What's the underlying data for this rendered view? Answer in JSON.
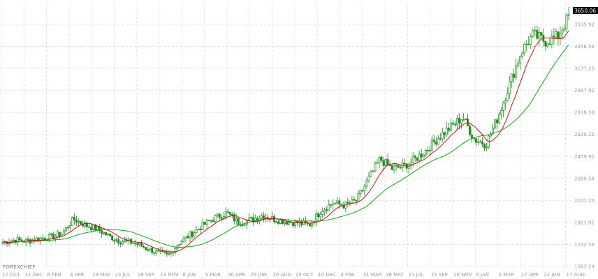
{
  "brand": "FOREXCHIEF",
  "current_price_label": "3650.06",
  "colors": {
    "candle": "#1a8f1a",
    "fast_ma": "#cc1111",
    "slow_ma": "#15a015",
    "grid": "#d9d9d9",
    "axis_text": "#9a9a9a",
    "label_bg": "#000000"
  },
  "chart_data": {
    "type": "candlestick",
    "title": "",
    "xlabel": "",
    "ylabel": "",
    "grid": true,
    "ylim": [
      1563.24,
      3700
    ],
    "y_ticks": [
      "3535.92",
      "3356.59",
      "3177.25",
      "2997.92",
      "2818.59",
      "2639.25",
      "2459.92",
      "2280.58",
      "2101.25",
      "1921.91",
      "1742.58",
      "1563.24"
    ],
    "x_ticks": [
      "17 OCT",
      "12 DEC",
      "6 FEB",
      "3 APR",
      "29 MAY",
      "24 JUL",
      "18 SEP",
      "13 NOV",
      "8 JAN",
      "5 MAR",
      "30 APR",
      "26 JUN",
      "20 AUG",
      "15 OCT",
      "10 DEC",
      "4 FEB",
      "31 MAR",
      "26 MAY",
      "21 JUL",
      "15 SEP",
      "10 NOV",
      "5 JAN",
      "2 MAR",
      "27 APR",
      "22 JUN",
      "17 AUG"
    ],
    "close_anchors": [
      1760,
      1780,
      1770,
      1790,
      1800,
      1830,
      1950,
      1900,
      1870,
      1810,
      1770,
      1760,
      1720,
      1680,
      1650,
      1760,
      1830,
      1900,
      1960,
      2000,
      1920,
      1940,
      1980,
      1950,
      1930,
      1920,
      1900,
      2020,
      2080,
      2060,
      2100,
      2270,
      2440,
      2360,
      2380,
      2440,
      2520,
      2620,
      2700,
      2780,
      2600,
      2560,
      2780,
      3050,
      3320,
      3450,
      3400,
      3430,
      3600
    ],
    "fast_ma_period": 10,
    "slow_ma_period": 30
  }
}
